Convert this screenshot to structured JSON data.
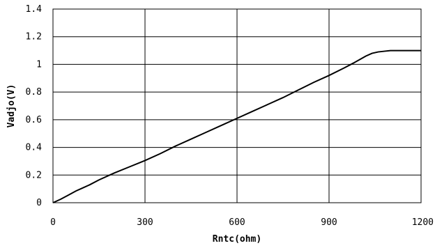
{
  "chart_data": {
    "type": "line",
    "title": "",
    "xlabel": "Rntc(ohm)",
    "ylabel": "Vadjo(V)",
    "xlim": [
      0,
      1200
    ],
    "ylim": [
      0,
      1.4
    ],
    "x_ticks": [
      0,
      300,
      600,
      900,
      1200
    ],
    "x_tick_labels": [
      "0",
      "300",
      "600",
      "900",
      "1200"
    ],
    "y_ticks": [
      0,
      0.2,
      0.4,
      0.6,
      0.8,
      1,
      1.2,
      1.4
    ],
    "y_tick_labels": [
      "0",
      "0.2",
      "0.4",
      "0.6",
      "0.8",
      "1",
      "1.2",
      "1.4"
    ],
    "grid": true,
    "legend": "none",
    "line_color": "#000000",
    "series": [
      {
        "x": [
          0,
          25,
          50,
          75,
          100,
          120,
          150,
          200,
          250,
          300,
          350,
          400,
          450,
          500,
          550,
          600,
          650,
          700,
          750,
          800,
          850,
          900,
          950,
          980,
          1000,
          1020,
          1040,
          1060,
          1080,
          1100,
          1150,
          1200
        ],
        "values": [
          0.0,
          0.025,
          0.055,
          0.085,
          0.11,
          0.13,
          0.165,
          0.215,
          0.26,
          0.305,
          0.355,
          0.41,
          0.46,
          0.51,
          0.56,
          0.61,
          0.66,
          0.71,
          0.76,
          0.815,
          0.87,
          0.92,
          0.975,
          1.01,
          1.035,
          1.06,
          1.08,
          1.09,
          1.095,
          1.1,
          1.1,
          1.1
        ]
      }
    ]
  }
}
